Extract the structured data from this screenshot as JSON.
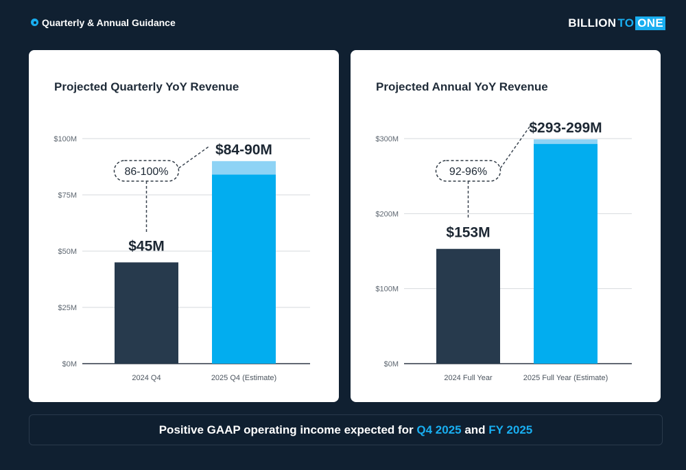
{
  "header": {
    "section_title": "Quarterly & Annual Guidance",
    "logo": {
      "part1": "BILLION",
      "part2": "TO",
      "part3": "ONE"
    }
  },
  "colors": {
    "background": "#102031",
    "actual_bar": "#273a4d",
    "estimate_bar": "#02adef",
    "estimate_range": "#8ed3f5",
    "accent": "#19aef0"
  },
  "chart_data": [
    {
      "type": "bar",
      "title": "Projected Quarterly YoY Revenue",
      "categories": [
        "2024 Q4",
        "2025 Q4 (Estimate)"
      ],
      "values": [
        45,
        84
      ],
      "range_top": [
        null,
        90
      ],
      "ylim": [
        0,
        100
      ],
      "yticks": [
        0,
        25,
        50,
        75,
        100
      ],
      "ytick_labels": [
        "$0M",
        "$25M",
        "$50M",
        "$75M",
        "$100M"
      ],
      "value_labels": [
        "$45M",
        "$84-90M"
      ],
      "growth_label": "86-100%",
      "grid": true
    },
    {
      "type": "bar",
      "title": "Projected Annual YoY Revenue",
      "categories": [
        "2024 Full Year",
        "2025 Full Year (Estimate)"
      ],
      "values": [
        153,
        293
      ],
      "range_top": [
        null,
        299
      ],
      "ylim": [
        0,
        300
      ],
      "yticks": [
        0,
        100,
        200,
        300
      ],
      "ytick_labels": [
        "$0M",
        "$100M",
        "$200M",
        "$300M"
      ],
      "value_labels": [
        "$153M",
        "$293-299M"
      ],
      "growth_label": "92-96%",
      "grid": true
    }
  ],
  "banner": {
    "text_before": "Positive GAAP operating income expected for ",
    "highlight1": "Q4 2025",
    "text_middle": " and ",
    "highlight2": "FY 2025"
  }
}
